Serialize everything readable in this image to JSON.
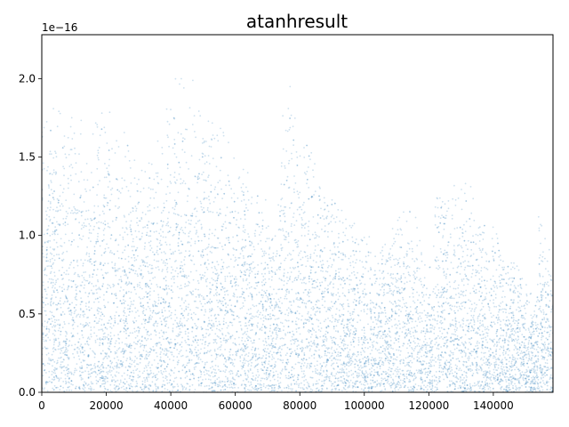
{
  "chart_data": {
    "type": "scatter",
    "title": "atanhresult",
    "xlabel": "",
    "ylabel": "",
    "offset_text": "1e−16",
    "xlim": [
      0,
      158500
    ],
    "ylim": [
      0,
      2.28
    ],
    "x_ticks": [
      0,
      20000,
      40000,
      60000,
      80000,
      100000,
      120000,
      140000
    ],
    "x_tick_labels": [
      "0",
      "20000",
      "40000",
      "60000",
      "80000",
      "100000",
      "120000",
      "140000"
    ],
    "y_ticks": [
      0.0,
      0.5,
      1.0,
      1.5,
      2.0
    ],
    "y_tick_labels": [
      "0.0",
      "0.5",
      "1.0",
      "1.5",
      "2.0"
    ],
    "grid": false,
    "point_color": "#1f77b4",
    "envelope": {
      "description": "upper envelope of the dense point cloud (x in data units, y in units of 1e-16)",
      "x": [
        0,
        5000,
        10000,
        15000,
        20000,
        30000,
        38000,
        40000,
        55000,
        65000,
        73000,
        75000,
        85000,
        95000,
        105000,
        110000,
        115000,
        120000,
        121000,
        122000,
        130000,
        140000,
        150000,
        153000,
        154000,
        158500
      ],
      "y": [
        1.95,
        1.9,
        1.85,
        1.7,
        1.95,
        1.6,
        1.7,
        2.2,
        1.75,
        1.45,
        1.2,
        2.15,
        1.55,
        1.15,
        0.95,
        1.3,
        1.2,
        0.9,
        0.7,
        1.4,
        1.4,
        1.15,
        0.75,
        0.6,
        1.2,
        0.9
      ]
    }
  }
}
